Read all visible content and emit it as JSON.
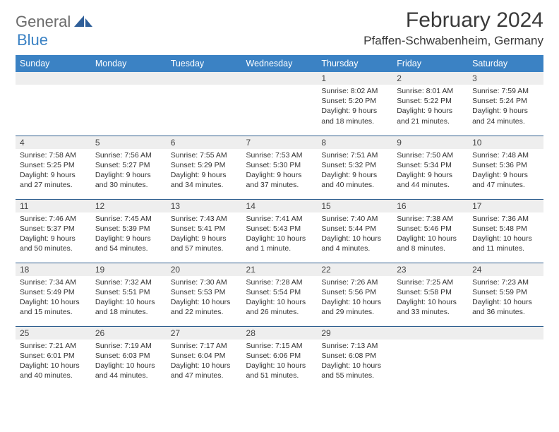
{
  "logo": {
    "text1": "General",
    "text2": "Blue"
  },
  "title": "February 2024",
  "location": "Pfaffen-Schwabenheim, Germany",
  "colors": {
    "header_bg": "#3b82c4",
    "header_text": "#ffffff",
    "daynum_bg": "#eeeeee",
    "row_border": "#2f5f8f",
    "logo_gray": "#6b6b6b",
    "logo_blue": "#3b82c4"
  },
  "day_labels": [
    "Sunday",
    "Monday",
    "Tuesday",
    "Wednesday",
    "Thursday",
    "Friday",
    "Saturday"
  ],
  "weeks": [
    [
      {
        "n": "",
        "lines": []
      },
      {
        "n": "",
        "lines": []
      },
      {
        "n": "",
        "lines": []
      },
      {
        "n": "",
        "lines": []
      },
      {
        "n": "1",
        "lines": [
          "Sunrise: 8:02 AM",
          "Sunset: 5:20 PM",
          "Daylight: 9 hours",
          "and 18 minutes."
        ]
      },
      {
        "n": "2",
        "lines": [
          "Sunrise: 8:01 AM",
          "Sunset: 5:22 PM",
          "Daylight: 9 hours",
          "and 21 minutes."
        ]
      },
      {
        "n": "3",
        "lines": [
          "Sunrise: 7:59 AM",
          "Sunset: 5:24 PM",
          "Daylight: 9 hours",
          "and 24 minutes."
        ]
      }
    ],
    [
      {
        "n": "4",
        "lines": [
          "Sunrise: 7:58 AM",
          "Sunset: 5:25 PM",
          "Daylight: 9 hours",
          "and 27 minutes."
        ]
      },
      {
        "n": "5",
        "lines": [
          "Sunrise: 7:56 AM",
          "Sunset: 5:27 PM",
          "Daylight: 9 hours",
          "and 30 minutes."
        ]
      },
      {
        "n": "6",
        "lines": [
          "Sunrise: 7:55 AM",
          "Sunset: 5:29 PM",
          "Daylight: 9 hours",
          "and 34 minutes."
        ]
      },
      {
        "n": "7",
        "lines": [
          "Sunrise: 7:53 AM",
          "Sunset: 5:30 PM",
          "Daylight: 9 hours",
          "and 37 minutes."
        ]
      },
      {
        "n": "8",
        "lines": [
          "Sunrise: 7:51 AM",
          "Sunset: 5:32 PM",
          "Daylight: 9 hours",
          "and 40 minutes."
        ]
      },
      {
        "n": "9",
        "lines": [
          "Sunrise: 7:50 AM",
          "Sunset: 5:34 PM",
          "Daylight: 9 hours",
          "and 44 minutes."
        ]
      },
      {
        "n": "10",
        "lines": [
          "Sunrise: 7:48 AM",
          "Sunset: 5:36 PM",
          "Daylight: 9 hours",
          "and 47 minutes."
        ]
      }
    ],
    [
      {
        "n": "11",
        "lines": [
          "Sunrise: 7:46 AM",
          "Sunset: 5:37 PM",
          "Daylight: 9 hours",
          "and 50 minutes."
        ]
      },
      {
        "n": "12",
        "lines": [
          "Sunrise: 7:45 AM",
          "Sunset: 5:39 PM",
          "Daylight: 9 hours",
          "and 54 minutes."
        ]
      },
      {
        "n": "13",
        "lines": [
          "Sunrise: 7:43 AM",
          "Sunset: 5:41 PM",
          "Daylight: 9 hours",
          "and 57 minutes."
        ]
      },
      {
        "n": "14",
        "lines": [
          "Sunrise: 7:41 AM",
          "Sunset: 5:43 PM",
          "Daylight: 10 hours",
          "and 1 minute."
        ]
      },
      {
        "n": "15",
        "lines": [
          "Sunrise: 7:40 AM",
          "Sunset: 5:44 PM",
          "Daylight: 10 hours",
          "and 4 minutes."
        ]
      },
      {
        "n": "16",
        "lines": [
          "Sunrise: 7:38 AM",
          "Sunset: 5:46 PM",
          "Daylight: 10 hours",
          "and 8 minutes."
        ]
      },
      {
        "n": "17",
        "lines": [
          "Sunrise: 7:36 AM",
          "Sunset: 5:48 PM",
          "Daylight: 10 hours",
          "and 11 minutes."
        ]
      }
    ],
    [
      {
        "n": "18",
        "lines": [
          "Sunrise: 7:34 AM",
          "Sunset: 5:49 PM",
          "Daylight: 10 hours",
          "and 15 minutes."
        ]
      },
      {
        "n": "19",
        "lines": [
          "Sunrise: 7:32 AM",
          "Sunset: 5:51 PM",
          "Daylight: 10 hours",
          "and 18 minutes."
        ]
      },
      {
        "n": "20",
        "lines": [
          "Sunrise: 7:30 AM",
          "Sunset: 5:53 PM",
          "Daylight: 10 hours",
          "and 22 minutes."
        ]
      },
      {
        "n": "21",
        "lines": [
          "Sunrise: 7:28 AM",
          "Sunset: 5:54 PM",
          "Daylight: 10 hours",
          "and 26 minutes."
        ]
      },
      {
        "n": "22",
        "lines": [
          "Sunrise: 7:26 AM",
          "Sunset: 5:56 PM",
          "Daylight: 10 hours",
          "and 29 minutes."
        ]
      },
      {
        "n": "23",
        "lines": [
          "Sunrise: 7:25 AM",
          "Sunset: 5:58 PM",
          "Daylight: 10 hours",
          "and 33 minutes."
        ]
      },
      {
        "n": "24",
        "lines": [
          "Sunrise: 7:23 AM",
          "Sunset: 5:59 PM",
          "Daylight: 10 hours",
          "and 36 minutes."
        ]
      }
    ],
    [
      {
        "n": "25",
        "lines": [
          "Sunrise: 7:21 AM",
          "Sunset: 6:01 PM",
          "Daylight: 10 hours",
          "and 40 minutes."
        ]
      },
      {
        "n": "26",
        "lines": [
          "Sunrise: 7:19 AM",
          "Sunset: 6:03 PM",
          "Daylight: 10 hours",
          "and 44 minutes."
        ]
      },
      {
        "n": "27",
        "lines": [
          "Sunrise: 7:17 AM",
          "Sunset: 6:04 PM",
          "Daylight: 10 hours",
          "and 47 minutes."
        ]
      },
      {
        "n": "28",
        "lines": [
          "Sunrise: 7:15 AM",
          "Sunset: 6:06 PM",
          "Daylight: 10 hours",
          "and 51 minutes."
        ]
      },
      {
        "n": "29",
        "lines": [
          "Sunrise: 7:13 AM",
          "Sunset: 6:08 PM",
          "Daylight: 10 hours",
          "and 55 minutes."
        ]
      },
      {
        "n": "",
        "lines": []
      },
      {
        "n": "",
        "lines": []
      }
    ]
  ]
}
